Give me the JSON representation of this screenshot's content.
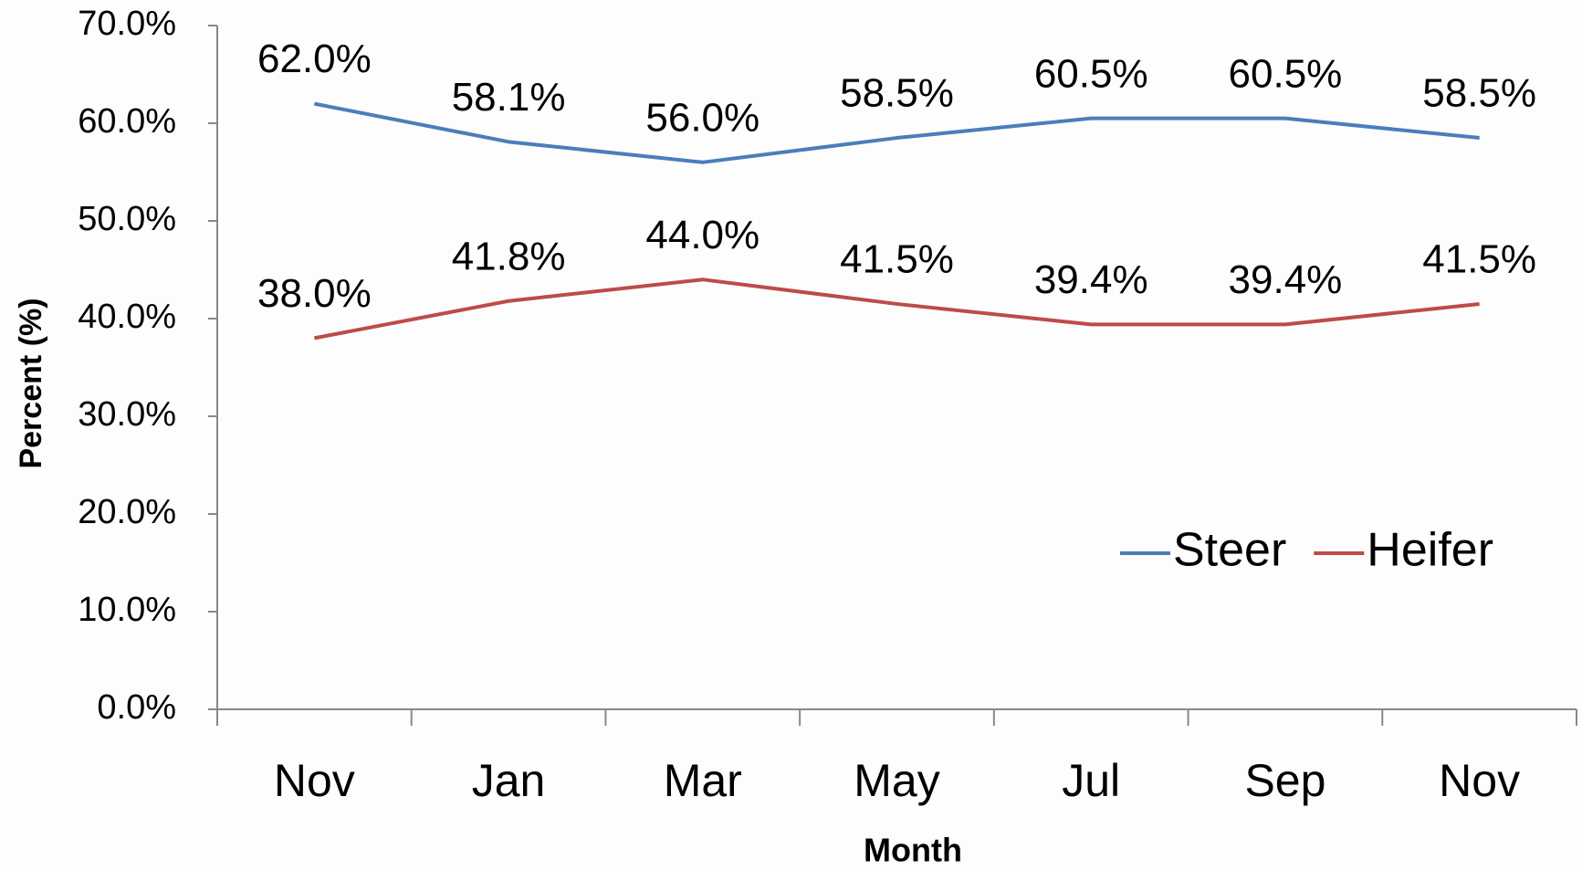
{
  "chart_data": {
    "type": "line",
    "x_label": "Month",
    "y_label": "Percent (%)",
    "categories": [
      "Nov",
      "Jan",
      "Mar",
      "May",
      "Jul",
      "Sep",
      "Nov"
    ],
    "series": [
      {
        "name": "Steer",
        "color": "#4a7ebb",
        "values": [
          62.0,
          58.1,
          56.0,
          58.5,
          60.5,
          60.5,
          58.5
        ],
        "value_labels": [
          "62.0%",
          "58.1%",
          "56.0%",
          "58.5%",
          "60.5%",
          "60.5%",
          "58.5%"
        ]
      },
      {
        "name": "Heifer",
        "color": "#be4b48",
        "values": [
          38.0,
          41.8,
          44.0,
          41.5,
          39.4,
          39.4,
          41.5
        ],
        "value_labels": [
          "38.0%",
          "41.8%",
          "44.0%",
          "41.5%",
          "39.4%",
          "39.4%",
          "41.5%"
        ]
      }
    ],
    "ylim": [
      0,
      70
    ],
    "yticks": [
      {
        "value": 0,
        "label": "0.0%"
      },
      {
        "value": 10,
        "label": "10.0%"
      },
      {
        "value": 20,
        "label": "20.0%"
      },
      {
        "value": 30,
        "label": "30.0%"
      },
      {
        "value": 40,
        "label": "40.0%"
      },
      {
        "value": 50,
        "label": "50.0%"
      },
      {
        "value": 60,
        "label": "60.0%"
      },
      {
        "value": 70,
        "label": "70.0%"
      }
    ],
    "grid": false,
    "legend": "right"
  }
}
